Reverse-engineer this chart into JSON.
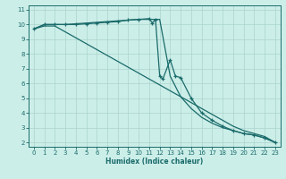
{
  "xlabel": "Humidex (Indice chaleur)",
  "bg_color": "#cceee8",
  "line_color": "#1a6b6b",
  "grid_color": "#aad4ce",
  "xlim": [
    -0.5,
    23.5
  ],
  "ylim": [
    1.7,
    11.3
  ],
  "yticks": [
    2,
    3,
    4,
    5,
    6,
    7,
    8,
    9,
    10,
    11
  ],
  "xticks": [
    0,
    1,
    2,
    3,
    4,
    5,
    6,
    7,
    8,
    9,
    10,
    11,
    12,
    13,
    14,
    15,
    16,
    17,
    18,
    19,
    20,
    21,
    22,
    23
  ],
  "upper_x": [
    0,
    1,
    2,
    3,
    4,
    5,
    6,
    7,
    8,
    9,
    10,
    11,
    12,
    13,
    14,
    15,
    16,
    17,
    18,
    19,
    20,
    21,
    22,
    23
  ],
  "upper_y": [
    9.7,
    10.0,
    10.0,
    10.0,
    10.05,
    10.1,
    10.15,
    10.2,
    10.25,
    10.3,
    10.35,
    10.35,
    10.35,
    6.5,
    5.1,
    4.3,
    3.7,
    3.3,
    3.0,
    2.8,
    2.6,
    2.5,
    2.3,
    2.0
  ],
  "lower_x": [
    0,
    1,
    2,
    3,
    4,
    5,
    6,
    7,
    8,
    9,
    10,
    11,
    12,
    13,
    14,
    15,
    16,
    17,
    18,
    19,
    20,
    21,
    22,
    23
  ],
  "lower_y": [
    9.7,
    9.9,
    9.9,
    9.5,
    9.1,
    8.7,
    8.3,
    7.9,
    7.5,
    7.1,
    6.7,
    6.3,
    5.9,
    5.5,
    5.1,
    4.7,
    4.3,
    3.9,
    3.5,
    3.1,
    2.8,
    2.6,
    2.4,
    2.0
  ],
  "main_x": [
    0,
    1,
    2,
    3,
    4,
    5,
    6,
    7,
    8,
    9,
    10,
    11,
    11.3,
    11.6,
    12,
    12.3,
    13,
    13.5,
    14,
    15,
    16,
    17,
    18,
    19,
    20,
    21,
    22,
    23
  ],
  "main_y": [
    9.7,
    10.0,
    10.0,
    10.0,
    10.0,
    10.05,
    10.1,
    10.15,
    10.2,
    10.3,
    10.35,
    10.4,
    10.1,
    10.35,
    6.5,
    6.3,
    7.6,
    6.5,
    6.4,
    5.0,
    4.0,
    3.5,
    3.1,
    2.8,
    2.6,
    2.5,
    2.3,
    2.0
  ]
}
